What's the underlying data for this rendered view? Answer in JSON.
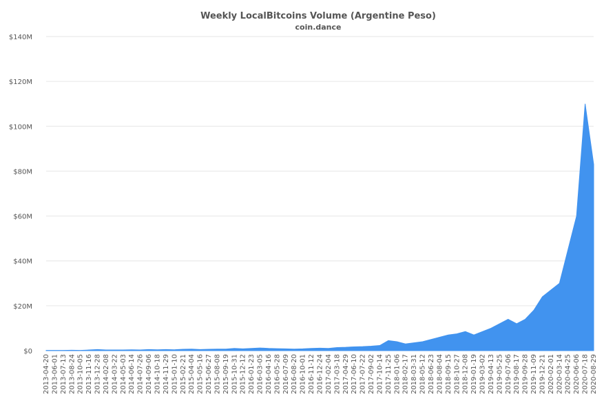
{
  "chart_data": {
    "type": "area",
    "title": "Weekly LocalBitcoins Volume (Argentine Peso)",
    "subtitle": "coin.dance",
    "xlabel": "",
    "ylabel": "",
    "ylim": [
      0,
      140
    ],
    "y_ticks": [
      "$0",
      "$20M",
      "$40M",
      "$60M",
      "$80M",
      "$100M",
      "$120M",
      "$140M"
    ],
    "x_tick_labels": [
      "2013-04-20",
      "2013-06-01",
      "2013-07-13",
      "2013-08-24",
      "2013-10-05",
      "2013-11-16",
      "2013-12-28",
      "2014-02-08",
      "2014-03-22",
      "2014-05-03",
      "2014-06-14",
      "2014-07-26",
      "2014-09-06",
      "2014-10-18",
      "2014-11-29",
      "2015-01-10",
      "2015-02-21",
      "2015-04-04",
      "2015-05-16",
      "2015-06-27",
      "2015-08-08",
      "2015-09-19",
      "2015-10-31",
      "2015-12-12",
      "2016-01-23",
      "2016-03-05",
      "2016-04-16",
      "2016-05-28",
      "2016-07-09",
      "2016-08-20",
      "2016-10-01",
      "2016-11-12",
      "2016-12-24",
      "2017-02-04",
      "2017-03-18",
      "2017-04-29",
      "2017-06-10",
      "2017-07-22",
      "2017-09-02",
      "2017-10-14",
      "2017-11-25",
      "2018-01-06",
      "2018-02-17",
      "2018-03-31",
      "2018-05-12",
      "2018-06-23",
      "2018-08-04",
      "2018-09-15",
      "2018-10-27",
      "2018-12-08",
      "2019-01-19",
      "2019-03-02",
      "2019-04-13",
      "2019-05-25",
      "2019-07-06",
      "2019-08-17",
      "2019-09-28",
      "2019-11-09",
      "2019-12-21",
      "2020-02-01",
      "2020-03-14",
      "2020-04-25",
      "2020-06-06",
      "2020-07-18",
      "2020-08-29"
    ],
    "series": [
      {
        "color": "#4193ef",
        "values_millions_ars": [
          0.1,
          0.1,
          0.1,
          0.2,
          0.1,
          0.3,
          0.5,
          0.3,
          0.3,
          0.3,
          0.4,
          0.3,
          0.5,
          0.4,
          0.5,
          0.4,
          0.6,
          0.7,
          0.5,
          0.6,
          0.7,
          0.7,
          1.0,
          0.8,
          1.0,
          1.2,
          1.0,
          0.9,
          0.8,
          0.7,
          0.8,
          1.0,
          1.1,
          1.0,
          1.4,
          1.5,
          1.7,
          1.8,
          2.0,
          2.3,
          4.5,
          4.0,
          3.0,
          3.5,
          4.0,
          5.0,
          6.0,
          7.0,
          7.5,
          8.5,
          7.0,
          8.5,
          10.0,
          12.0,
          14.0,
          12.0,
          14.0,
          18.0,
          24.0,
          27.0,
          30.0,
          45.0,
          60.0,
          110.0,
          83.0
        ]
      }
    ]
  }
}
